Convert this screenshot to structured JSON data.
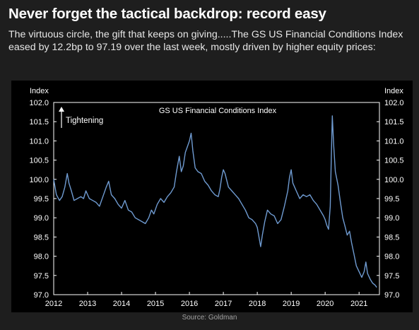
{
  "header": {
    "title": "Never forget the tactical backdrop: record easy",
    "description": "The virtuous circle, the gift that keeps on giving.....The GS US Financial Conditions Index eased by 12.2bp to 97.19 over the last week, mostly driven by higher equity prices:"
  },
  "footer": {
    "source": "Source: Goldman"
  },
  "colors": {
    "line": "#6f9bd1",
    "panel_background": "#000000",
    "page_background": "#1e1e1e",
    "axis_text": "#ffffff"
  },
  "chart_data": {
    "type": "line",
    "title": "GS US Financial Conditions Index",
    "left_axis_label": "Index",
    "right_axis_label": "Index",
    "annotation": "Tightening",
    "annotation_arrow": "up",
    "ylim": [
      97.0,
      102.0
    ],
    "y_ticks": [
      "97.0",
      "97.5",
      "98.0",
      "98.5",
      "99.0",
      "99.5",
      "100.0",
      "100.5",
      "101.0",
      "101.5",
      "102.0"
    ],
    "xlim": [
      2012.0,
      2021.6
    ],
    "x_ticks": [
      "2012",
      "2013",
      "2014",
      "2015",
      "2016",
      "2017",
      "2018",
      "2019",
      "2020",
      "2021"
    ],
    "grid": false,
    "series": [
      {
        "name": "GS US Financial Conditions Index",
        "points": [
          [
            2012.0,
            100.0
          ],
          [
            2012.08,
            99.6
          ],
          [
            2012.17,
            99.45
          ],
          [
            2012.25,
            99.55
          ],
          [
            2012.33,
            99.8
          ],
          [
            2012.4,
            100.15
          ],
          [
            2012.45,
            99.9
          ],
          [
            2012.52,
            99.7
          ],
          [
            2012.6,
            99.45
          ],
          [
            2012.7,
            99.5
          ],
          [
            2012.8,
            99.55
          ],
          [
            2012.88,
            99.5
          ],
          [
            2012.95,
            99.7
          ],
          [
            2013.05,
            99.5
          ],
          [
            2013.15,
            99.45
          ],
          [
            2013.25,
            99.4
          ],
          [
            2013.35,
            99.3
          ],
          [
            2013.45,
            99.55
          ],
          [
            2013.55,
            99.8
          ],
          [
            2013.62,
            99.95
          ],
          [
            2013.7,
            99.6
          ],
          [
            2013.8,
            99.5
          ],
          [
            2013.9,
            99.35
          ],
          [
            2014.0,
            99.25
          ],
          [
            2014.1,
            99.45
          ],
          [
            2014.2,
            99.2
          ],
          [
            2014.3,
            99.15
          ],
          [
            2014.4,
            99.0
          ],
          [
            2014.5,
            98.95
          ],
          [
            2014.6,
            98.9
          ],
          [
            2014.7,
            98.85
          ],
          [
            2014.8,
            99.0
          ],
          [
            2014.88,
            99.2
          ],
          [
            2014.95,
            99.1
          ],
          [
            2015.05,
            99.35
          ],
          [
            2015.15,
            99.5
          ],
          [
            2015.25,
            99.4
          ],
          [
            2015.35,
            99.55
          ],
          [
            2015.45,
            99.65
          ],
          [
            2015.55,
            99.8
          ],
          [
            2015.62,
            100.2
          ],
          [
            2015.7,
            100.6
          ],
          [
            2015.76,
            100.2
          ],
          [
            2015.82,
            100.35
          ],
          [
            2015.88,
            100.7
          ],
          [
            2015.94,
            100.85
          ],
          [
            2016.0,
            101.0
          ],
          [
            2016.05,
            101.2
          ],
          [
            2016.1,
            100.75
          ],
          [
            2016.17,
            100.3
          ],
          [
            2016.25,
            100.2
          ],
          [
            2016.35,
            100.15
          ],
          [
            2016.45,
            99.95
          ],
          [
            2016.55,
            99.85
          ],
          [
            2016.65,
            99.7
          ],
          [
            2016.75,
            99.6
          ],
          [
            2016.85,
            99.55
          ],
          [
            2016.9,
            99.75
          ],
          [
            2016.95,
            100.05
          ],
          [
            2017.0,
            100.25
          ],
          [
            2017.05,
            100.15
          ],
          [
            2017.15,
            99.8
          ],
          [
            2017.25,
            99.7
          ],
          [
            2017.35,
            99.6
          ],
          [
            2017.45,
            99.5
          ],
          [
            2017.55,
            99.35
          ],
          [
            2017.65,
            99.2
          ],
          [
            2017.75,
            99.0
          ],
          [
            2017.85,
            98.95
          ],
          [
            2017.95,
            98.85
          ],
          [
            2018.0,
            98.75
          ],
          [
            2018.05,
            98.5
          ],
          [
            2018.1,
            98.25
          ],
          [
            2018.15,
            98.55
          ],
          [
            2018.22,
            98.9
          ],
          [
            2018.3,
            99.2
          ],
          [
            2018.4,
            99.1
          ],
          [
            2018.5,
            99.05
          ],
          [
            2018.6,
            98.85
          ],
          [
            2018.7,
            98.95
          ],
          [
            2018.8,
            99.3
          ],
          [
            2018.9,
            99.7
          ],
          [
            2018.95,
            100.05
          ],
          [
            2019.0,
            100.25
          ],
          [
            2019.05,
            99.9
          ],
          [
            2019.15,
            99.7
          ],
          [
            2019.25,
            99.5
          ],
          [
            2019.35,
            99.6
          ],
          [
            2019.45,
            99.55
          ],
          [
            2019.55,
            99.6
          ],
          [
            2019.65,
            99.45
          ],
          [
            2019.75,
            99.35
          ],
          [
            2019.85,
            99.2
          ],
          [
            2019.95,
            99.05
          ],
          [
            2020.0,
            98.95
          ],
          [
            2020.05,
            98.8
          ],
          [
            2020.1,
            98.7
          ],
          [
            2020.15,
            99.3
          ],
          [
            2020.18,
            100.5
          ],
          [
            2020.21,
            101.65
          ],
          [
            2020.25,
            100.9
          ],
          [
            2020.3,
            100.2
          ],
          [
            2020.38,
            99.85
          ],
          [
            2020.45,
            99.4
          ],
          [
            2020.52,
            99.0
          ],
          [
            2020.58,
            98.8
          ],
          [
            2020.65,
            98.55
          ],
          [
            2020.72,
            98.65
          ],
          [
            2020.78,
            98.35
          ],
          [
            2020.85,
            98.05
          ],
          [
            2020.92,
            97.75
          ],
          [
            2021.0,
            97.6
          ],
          [
            2021.08,
            97.45
          ],
          [
            2021.15,
            97.6
          ],
          [
            2021.2,
            97.85
          ],
          [
            2021.25,
            97.55
          ],
          [
            2021.33,
            97.4
          ],
          [
            2021.4,
            97.3
          ],
          [
            2021.47,
            97.25
          ],
          [
            2021.52,
            97.19
          ]
        ]
      }
    ]
  }
}
